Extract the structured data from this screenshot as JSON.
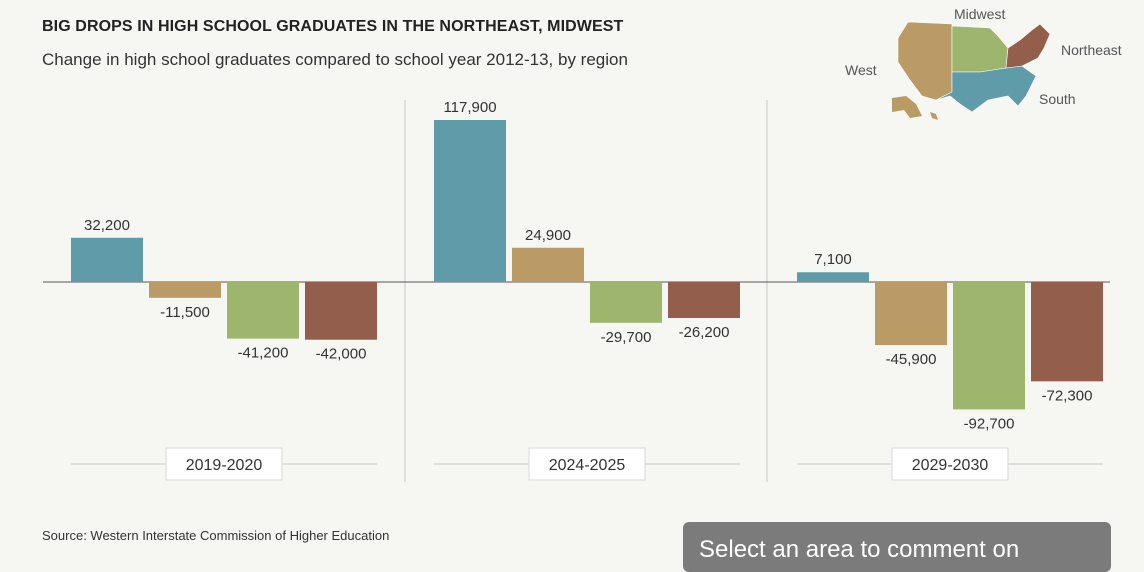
{
  "title": "BIG DROPS IN HIGH SCHOOL GRADUATES IN THE NORTHEAST, MIDWEST",
  "subtitle": "Change in high school graduates compared to school year 2012-13, by region",
  "source": "Source: Western Interstate Commission of Higher Education",
  "comment_prompt": "Select an area to comment on",
  "map": {
    "labels": {
      "west": "West",
      "midwest": "Midwest",
      "northeast": "Northeast",
      "south": "South"
    }
  },
  "colors": {
    "West": "#ba9b66",
    "Midwest": "#9db56c",
    "Northeast": "#935f4c",
    "South": "#5f9ba8"
  },
  "chart_data": {
    "type": "bar",
    "categories": [
      "2019-2020",
      "2024-2025",
      "2029-2030"
    ],
    "region_order": [
      "South",
      "West",
      "Midwest",
      "Northeast"
    ],
    "series": [
      {
        "name": "South",
        "values": [
          32200,
          117900,
          7100
        ]
      },
      {
        "name": "West",
        "values": [
          -11500,
          24900,
          -45900
        ]
      },
      {
        "name": "Midwest",
        "values": [
          -41200,
          -29700,
          -92700
        ]
      },
      {
        "name": "Northeast",
        "values": [
          -42000,
          -26200,
          -72300
        ]
      }
    ],
    "data_labels": [
      [
        "32,200",
        "-11,500",
        "-41,200",
        "-42,000"
      ],
      [
        "117,900",
        "24,900",
        "-29,700",
        "-26,200"
      ],
      [
        "7,100",
        "-45,900",
        "-92,700",
        "-72,300"
      ]
    ],
    "title": "BIG DROPS IN HIGH SCHOOL GRADUATES IN THE NORTHEAST, MIDWEST",
    "xlabel": "",
    "ylabel": "",
    "ylim": [
      -100000,
      120000
    ],
    "grid": false,
    "legend": "map, top-right"
  }
}
